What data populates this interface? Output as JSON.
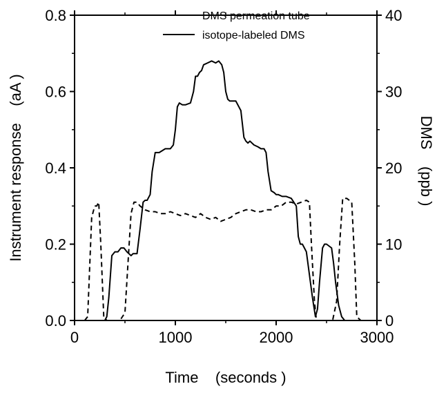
{
  "chart_data": {
    "type": "line",
    "xlabel": "Time    (seconds )",
    "ylabel_left": "Instrument response    (aA )",
    "ylabel_right": "DMS    (ppb )",
    "xlim": [
      0,
      3000
    ],
    "ylim_left": [
      0,
      0.8
    ],
    "ylim_right": [
      0,
      40
    ],
    "x_ticks": [
      "0",
      "1000",
      "2000",
      "3000"
    ],
    "y_ticks_left": [
      "0.0",
      "0.2",
      "0.4",
      "0.6",
      "0.8"
    ],
    "y_ticks_right": [
      "0",
      "10",
      "20",
      "30",
      "40"
    ],
    "grid": false,
    "legend_position": "top-right",
    "series": [
      {
        "name": "DMS permeation tube",
        "axis": "left",
        "style": "dashed",
        "x": [
          100,
          130,
          170,
          200,
          220,
          240,
          260,
          290,
          320,
          450,
          500,
          530,
          560,
          590,
          620,
          650,
          700,
          750,
          800,
          850,
          900,
          950,
          1000,
          1050,
          1100,
          1150,
          1200,
          1250,
          1300,
          1350,
          1400,
          1450,
          1500,
          1550,
          1600,
          1650,
          1700,
          1750,
          1800,
          1850,
          1900,
          1950,
          2000,
          2050,
          2100,
          2150,
          2200,
          2250,
          2300,
          2330,
          2350,
          2380,
          2400,
          2560,
          2600,
          2630,
          2660,
          2700,
          2750,
          2780,
          2800,
          2840
        ],
        "values": [
          0.0,
          0.01,
          0.27,
          0.3,
          0.3,
          0.31,
          0.2,
          0.01,
          0.0,
          0.0,
          0.02,
          0.15,
          0.28,
          0.31,
          0.31,
          0.3,
          0.29,
          0.285,
          0.285,
          0.28,
          0.28,
          0.285,
          0.28,
          0.275,
          0.28,
          0.275,
          0.27,
          0.28,
          0.27,
          0.265,
          0.27,
          0.26,
          0.265,
          0.27,
          0.28,
          0.285,
          0.29,
          0.29,
          0.285,
          0.285,
          0.29,
          0.29,
          0.3,
          0.3,
          0.31,
          0.31,
          0.305,
          0.31,
          0.315,
          0.31,
          0.2,
          0.05,
          0.0,
          0.0,
          0.05,
          0.2,
          0.32,
          0.32,
          0.31,
          0.15,
          0.01,
          0.0
        ]
      },
      {
        "name": "isotope-labeled DMS",
        "axis": "left",
        "style": "solid",
        "x": [
          0,
          300,
          320,
          340,
          370,
          400,
          430,
          460,
          490,
          520,
          540,
          560,
          580,
          620,
          650,
          680,
          700,
          720,
          750,
          770,
          800,
          820,
          840,
          870,
          900,
          950,
          980,
          1000,
          1020,
          1040,
          1070,
          1100,
          1150,
          1180,
          1200,
          1220,
          1240,
          1260,
          1280,
          1320,
          1360,
          1400,
          1430,
          1460,
          1480,
          1500,
          1520,
          1540,
          1570,
          1600,
          1650,
          1680,
          1700,
          1720,
          1740,
          1780,
          1820,
          1850,
          1880,
          1900,
          1920,
          1950,
          1980,
          2000,
          2020,
          2060,
          2100,
          2150,
          2200,
          2220,
          2240,
          2260,
          2280,
          2300,
          2330,
          2360,
          2390,
          2410,
          2430,
          2460,
          2480,
          2500,
          2550,
          2570,
          2590,
          2620,
          2650,
          2680,
          2720,
          2800,
          3000
        ],
        "values": [
          0.0,
          0.0,
          0.01,
          0.06,
          0.17,
          0.18,
          0.18,
          0.19,
          0.19,
          0.18,
          0.175,
          0.17,
          0.175,
          0.175,
          0.24,
          0.31,
          0.315,
          0.315,
          0.33,
          0.39,
          0.44,
          0.44,
          0.44,
          0.445,
          0.45,
          0.45,
          0.46,
          0.5,
          0.56,
          0.57,
          0.565,
          0.565,
          0.57,
          0.6,
          0.64,
          0.64,
          0.65,
          0.655,
          0.67,
          0.675,
          0.68,
          0.675,
          0.68,
          0.67,
          0.65,
          0.6,
          0.58,
          0.575,
          0.575,
          0.575,
          0.55,
          0.48,
          0.47,
          0.465,
          0.47,
          0.46,
          0.455,
          0.45,
          0.45,
          0.44,
          0.39,
          0.34,
          0.335,
          0.33,
          0.33,
          0.325,
          0.325,
          0.32,
          0.3,
          0.22,
          0.2,
          0.2,
          0.19,
          0.18,
          0.12,
          0.06,
          0.01,
          0.03,
          0.1,
          0.19,
          0.2,
          0.2,
          0.19,
          0.15,
          0.1,
          0.04,
          0.01,
          0.0,
          0.0,
          0.0,
          0.0
        ]
      }
    ]
  }
}
